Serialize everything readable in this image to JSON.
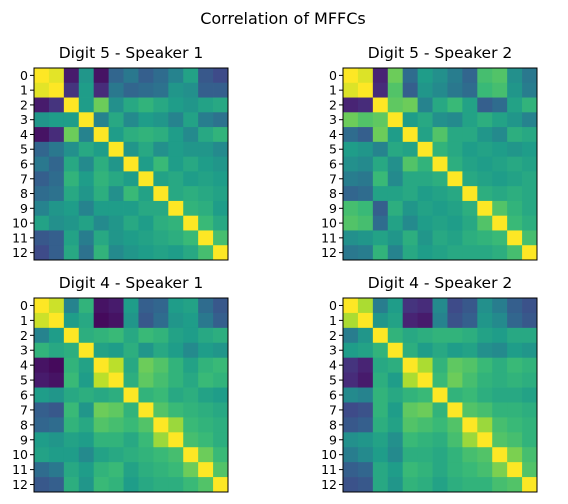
{
  "figure": {
    "suptitle": "Correlation of MFFCs"
  },
  "chart_data": [
    {
      "type": "heatmap",
      "title": "Digit 5 - Speaker 1",
      "yticks": [
        "0",
        "1",
        "2",
        "3",
        "4",
        "5",
        "6",
        "7",
        "8",
        "9",
        "10",
        "11",
        "12"
      ],
      "colormap": "viridis",
      "vmin": -1,
      "vmax": 1,
      "values": [
        [
          1.0,
          0.92,
          -0.85,
          0.05,
          -0.9,
          -0.35,
          -0.2,
          -0.4,
          -0.3,
          -0.1,
          0.15,
          -0.45,
          -0.55
        ],
        [
          0.92,
          1.0,
          -0.7,
          0.1,
          -0.75,
          -0.2,
          -0.35,
          -0.3,
          -0.25,
          0.05,
          0.0,
          -0.4,
          -0.4
        ],
        [
          -0.85,
          -0.7,
          1.0,
          0.1,
          0.55,
          0.0,
          0.2,
          0.3,
          0.2,
          0.1,
          0.05,
          0.15,
          0.2
        ],
        [
          0.05,
          0.1,
          0.1,
          1.0,
          -0.1,
          0.2,
          -0.05,
          0.1,
          0.05,
          -0.1,
          0.15,
          -0.15,
          -0.25
        ],
        [
          -0.9,
          -0.75,
          0.55,
          -0.1,
          1.0,
          0.1,
          0.25,
          0.3,
          0.25,
          0.1,
          -0.05,
          0.2,
          0.3
        ],
        [
          -0.35,
          -0.2,
          0.0,
          0.2,
          0.1,
          1.0,
          0.05,
          0.2,
          0.0,
          0.1,
          0.05,
          0.05,
          -0.05
        ],
        [
          -0.2,
          -0.35,
          0.2,
          -0.05,
          0.25,
          0.05,
          1.0,
          0.1,
          0.35,
          0.1,
          0.2,
          0.1,
          0.05
        ],
        [
          -0.4,
          -0.3,
          0.3,
          0.1,
          0.3,
          0.2,
          0.1,
          1.0,
          0.15,
          0.2,
          0.1,
          0.15,
          0.1
        ],
        [
          -0.3,
          -0.25,
          0.2,
          0.05,
          0.25,
          0.0,
          0.35,
          0.15,
          1.0,
          0.2,
          0.25,
          0.2,
          0.15
        ],
        [
          -0.1,
          0.05,
          0.1,
          -0.1,
          0.1,
          0.1,
          0.1,
          0.2,
          0.2,
          1.0,
          0.3,
          0.25,
          0.1
        ],
        [
          0.15,
          0.0,
          0.05,
          0.15,
          -0.05,
          0.05,
          0.2,
          0.1,
          0.25,
          0.3,
          1.0,
          0.35,
          0.2
        ],
        [
          -0.45,
          -0.4,
          0.15,
          -0.15,
          0.2,
          0.05,
          0.1,
          0.15,
          0.2,
          0.25,
          0.35,
          1.0,
          0.4
        ],
        [
          -0.55,
          -0.4,
          0.2,
          -0.25,
          0.3,
          -0.05,
          0.05,
          0.1,
          0.15,
          0.1,
          0.2,
          0.4,
          1.0
        ]
      ]
    },
    {
      "type": "heatmap",
      "title": "Digit 5 - Speaker 2",
      "yticks": [
        "0",
        "1",
        "2",
        "3",
        "4",
        "5",
        "6",
        "7",
        "8",
        "9",
        "10",
        "11",
        "12"
      ],
      "colormap": "viridis",
      "vmin": -1,
      "vmax": 1,
      "values": [
        [
          1.0,
          0.9,
          -0.8,
          0.55,
          -0.3,
          0.1,
          0.0,
          -0.15,
          -0.35,
          0.4,
          0.45,
          0.0,
          -0.2
        ],
        [
          0.9,
          1.0,
          -0.75,
          0.45,
          -0.4,
          0.05,
          -0.05,
          -0.2,
          -0.3,
          0.35,
          0.4,
          0.05,
          -0.15
        ],
        [
          -0.8,
          -0.75,
          1.0,
          0.5,
          0.55,
          -0.1,
          0.2,
          0.35,
          0.15,
          -0.4,
          -0.3,
          0.15,
          0.3
        ],
        [
          0.55,
          0.45,
          0.5,
          1.0,
          0.1,
          0.2,
          0.0,
          -0.05,
          0.15,
          0.25,
          0.15,
          0.05,
          -0.1
        ],
        [
          -0.3,
          -0.4,
          0.55,
          0.1,
          1.0,
          0.15,
          0.45,
          0.2,
          0.2,
          0.05,
          -0.05,
          0.25,
          0.2
        ],
        [
          0.1,
          0.05,
          -0.1,
          0.2,
          0.15,
          1.0,
          0.3,
          0.2,
          0.1,
          0.15,
          0.1,
          0.05,
          0.1
        ],
        [
          0.0,
          -0.05,
          0.2,
          0.0,
          0.45,
          0.3,
          1.0,
          0.25,
          0.15,
          0.1,
          0.15,
          0.2,
          0.15
        ],
        [
          -0.15,
          -0.2,
          0.35,
          -0.05,
          0.2,
          0.2,
          0.25,
          1.0,
          0.2,
          0.15,
          0.1,
          0.15,
          0.2
        ],
        [
          -0.35,
          -0.3,
          0.15,
          0.15,
          0.2,
          0.1,
          0.15,
          0.2,
          1.0,
          0.25,
          0.2,
          0.25,
          0.2
        ],
        [
          0.4,
          0.35,
          -0.4,
          0.25,
          0.05,
          0.15,
          0.1,
          0.15,
          0.25,
          1.0,
          0.45,
          0.3,
          0.2
        ],
        [
          0.45,
          0.4,
          -0.3,
          0.15,
          -0.05,
          0.1,
          0.15,
          0.1,
          0.2,
          0.45,
          1.0,
          0.35,
          0.25
        ],
        [
          0.0,
          0.05,
          0.15,
          0.05,
          0.25,
          0.05,
          0.2,
          0.15,
          0.25,
          0.3,
          0.35,
          1.0,
          0.4
        ],
        [
          -0.2,
          -0.15,
          0.3,
          -0.1,
          0.2,
          0.1,
          0.15,
          0.2,
          0.2,
          0.2,
          0.25,
          0.4,
          1.0
        ]
      ]
    },
    {
      "type": "heatmap",
      "title": "Digit 4 - Speaker 1",
      "yticks": [
        "0",
        "1",
        "2",
        "3",
        "4",
        "5",
        "6",
        "7",
        "8",
        "9",
        "10",
        "11",
        "12"
      ],
      "colormap": "viridis",
      "vmin": -1,
      "vmax": 1,
      "values": [
        [
          1.0,
          0.85,
          -0.1,
          0.3,
          -0.9,
          -0.85,
          0.1,
          -0.4,
          -0.35,
          0.1,
          0.15,
          -0.3,
          -0.45
        ],
        [
          0.85,
          1.0,
          0.1,
          0.2,
          -0.95,
          -0.9,
          0.05,
          -0.45,
          -0.3,
          0.05,
          0.1,
          -0.2,
          -0.4
        ],
        [
          -0.1,
          0.1,
          1.0,
          0.25,
          0.3,
          0.35,
          0.2,
          0.35,
          0.3,
          0.15,
          0.1,
          0.2,
          0.25
        ],
        [
          0.3,
          0.2,
          0.25,
          1.0,
          0.15,
          0.1,
          0.25,
          0.05,
          0.2,
          0.1,
          -0.05,
          0.1,
          0.05
        ],
        [
          -0.9,
          -0.95,
          0.3,
          0.15,
          1.0,
          0.8,
          0.2,
          0.55,
          0.45,
          0.3,
          0.15,
          0.3,
          0.35
        ],
        [
          -0.85,
          -0.9,
          0.35,
          0.1,
          0.8,
          1.0,
          0.25,
          0.5,
          0.4,
          0.3,
          0.2,
          0.35,
          0.3
        ],
        [
          0.1,
          0.05,
          0.2,
          0.25,
          0.2,
          0.25,
          1.0,
          0.3,
          0.35,
          0.2,
          0.25,
          0.15,
          0.1
        ],
        [
          -0.4,
          -0.45,
          0.35,
          0.05,
          0.55,
          0.5,
          0.3,
          1.0,
          0.45,
          0.35,
          0.3,
          0.25,
          0.2
        ],
        [
          -0.35,
          -0.3,
          0.3,
          0.2,
          0.45,
          0.4,
          0.35,
          0.45,
          1.0,
          0.7,
          0.35,
          0.3,
          0.25
        ],
        [
          0.1,
          0.05,
          0.15,
          0.1,
          0.3,
          0.3,
          0.2,
          0.35,
          0.7,
          1.0,
          0.4,
          0.35,
          0.25
        ],
        [
          0.15,
          0.1,
          0.1,
          -0.05,
          0.15,
          0.2,
          0.25,
          0.3,
          0.35,
          0.4,
          1.0,
          0.55,
          0.35
        ],
        [
          -0.3,
          -0.2,
          0.2,
          0.1,
          0.3,
          0.35,
          0.15,
          0.25,
          0.3,
          0.35,
          0.55,
          1.0,
          0.45
        ],
        [
          -0.45,
          -0.4,
          0.25,
          0.05,
          0.35,
          0.3,
          0.1,
          0.2,
          0.25,
          0.25,
          0.35,
          0.45,
          1.0
        ]
      ]
    },
    {
      "type": "heatmap",
      "title": "Digit 4 - Speaker 2",
      "yticks": [
        "0",
        "1",
        "2",
        "3",
        "4",
        "5",
        "6",
        "7",
        "8",
        "9",
        "10",
        "11",
        "12"
      ],
      "colormap": "viridis",
      "vmin": -1,
      "vmax": 1,
      "values": [
        [
          1.0,
          0.75,
          -0.15,
          0.1,
          -0.7,
          -0.75,
          -0.05,
          -0.55,
          -0.45,
          0.0,
          -0.15,
          -0.4,
          -0.5
        ],
        [
          0.75,
          1.0,
          0.05,
          0.15,
          -0.8,
          -0.85,
          -0.1,
          -0.5,
          -0.4,
          0.05,
          -0.05,
          -0.35,
          -0.45
        ],
        [
          -0.15,
          0.05,
          1.0,
          0.3,
          0.2,
          0.25,
          0.3,
          0.3,
          0.25,
          0.15,
          0.1,
          0.2,
          0.2
        ],
        [
          0.1,
          0.15,
          0.3,
          1.0,
          0.25,
          0.1,
          0.2,
          0.1,
          0.15,
          0.0,
          -0.05,
          0.1,
          0.05
        ],
        [
          -0.7,
          -0.8,
          0.2,
          0.25,
          1.0,
          0.75,
          0.3,
          0.5,
          0.45,
          0.35,
          0.25,
          0.35,
          0.3
        ],
        [
          -0.75,
          -0.85,
          0.25,
          0.1,
          0.75,
          1.0,
          0.35,
          0.55,
          0.4,
          0.3,
          0.25,
          0.3,
          0.25
        ],
        [
          -0.05,
          -0.1,
          0.3,
          0.2,
          0.3,
          0.35,
          1.0,
          0.3,
          0.35,
          0.25,
          0.2,
          0.2,
          0.15
        ],
        [
          -0.55,
          -0.5,
          0.3,
          0.1,
          0.5,
          0.55,
          0.3,
          1.0,
          0.45,
          0.4,
          0.3,
          0.3,
          0.25
        ],
        [
          -0.45,
          -0.4,
          0.25,
          0.15,
          0.45,
          0.4,
          0.35,
          0.45,
          1.0,
          0.7,
          0.4,
          0.35,
          0.3
        ],
        [
          0.0,
          0.05,
          0.15,
          0.0,
          0.35,
          0.3,
          0.25,
          0.4,
          0.7,
          1.0,
          0.45,
          0.4,
          0.3
        ],
        [
          -0.15,
          -0.05,
          0.1,
          -0.05,
          0.25,
          0.25,
          0.2,
          0.3,
          0.4,
          0.45,
          1.0,
          0.6,
          0.4
        ],
        [
          -0.4,
          -0.35,
          0.2,
          0.1,
          0.35,
          0.3,
          0.2,
          0.3,
          0.35,
          0.4,
          0.6,
          1.0,
          0.45
        ],
        [
          -0.5,
          -0.45,
          0.2,
          0.05,
          0.3,
          0.25,
          0.15,
          0.25,
          0.3,
          0.3,
          0.4,
          0.45,
          1.0
        ]
      ]
    }
  ]
}
